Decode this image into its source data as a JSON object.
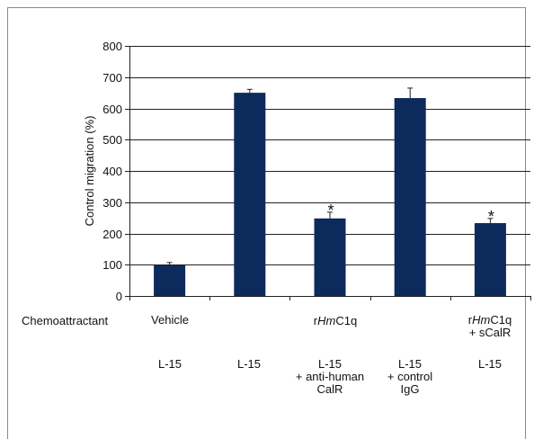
{
  "chart_data": {
    "type": "bar",
    "title": "",
    "xlabel": "",
    "ylabel": "Control migration (%)",
    "ylim": [
      0,
      800
    ],
    "yticks": [
      0,
      100,
      200,
      300,
      400,
      500,
      600,
      700,
      800
    ],
    "grid": true,
    "bar_color": "#0d2a5c",
    "categories": [
      "L-15",
      "L-15",
      "L-15 + anti-human CalR",
      "L-15 + control IgG",
      "L-15"
    ],
    "values": [
      98,
      650,
      248,
      633,
      233
    ],
    "errors": [
      9,
      11,
      20,
      32,
      15
    ],
    "significant": [
      false,
      false,
      true,
      false,
      true
    ],
    "significance_marker": "*"
  },
  "annotations": {
    "chemoattractant_label": "Chemoattractant",
    "vehicle_label": "Vehicle",
    "rhm_prefix": "r",
    "rhm_italic": "Hm",
    "rhm_suffix": "C1q",
    "last_top_prefix": "r",
    "last_top_italic": "Hm",
    "last_top_suffix": "C1q",
    "last_top_line2": "+ sCalR"
  },
  "bottom_labels": [
    {
      "line1": "L-15",
      "line2": "",
      "line3": ""
    },
    {
      "line1": "L-15",
      "line2": "",
      "line3": ""
    },
    {
      "line1": "L-15",
      "line2": "+ anti-human",
      "line3": "CalR"
    },
    {
      "line1": "L-15",
      "line2": "+ control",
      "line3": "IgG"
    },
    {
      "line1": "L-15",
      "line2": "",
      "line3": ""
    }
  ]
}
